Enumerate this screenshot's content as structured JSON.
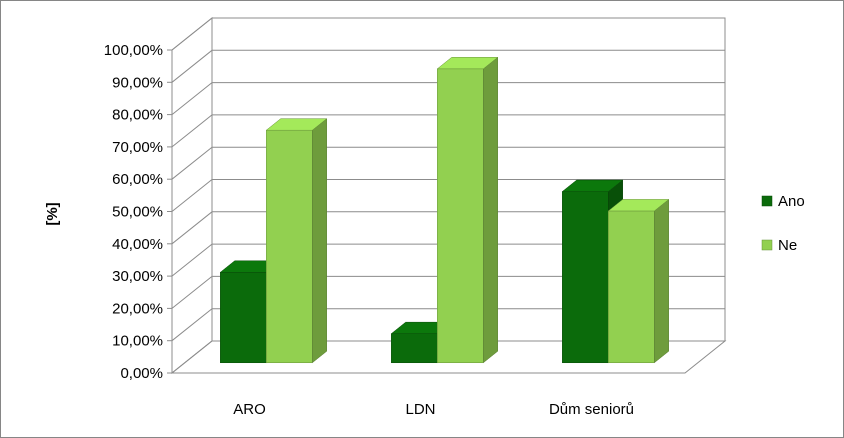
{
  "chart_data": {
    "type": "bar",
    "title": "",
    "xlabel": "",
    "ylabel": "[%]",
    "ylim": [
      0,
      100
    ],
    "ytick_labels": [
      "0,00%",
      "10,00%",
      "20,00%",
      "30,00%",
      "40,00%",
      "50,00%",
      "60,00%",
      "70,00%",
      "80,00%",
      "90,00%",
      "100,00%"
    ],
    "categories": [
      "ARO",
      "LDN",
      "Dům seniorů"
    ],
    "series": [
      {
        "name": "Ano",
        "values": [
          28,
          9,
          53
        ],
        "color": "#0b6b0b"
      },
      {
        "name": "Ne",
        "values": [
          72,
          91,
          47
        ],
        "color": "#92d050"
      }
    ],
    "legend_position": "right",
    "grid": true,
    "projection": "3d"
  }
}
